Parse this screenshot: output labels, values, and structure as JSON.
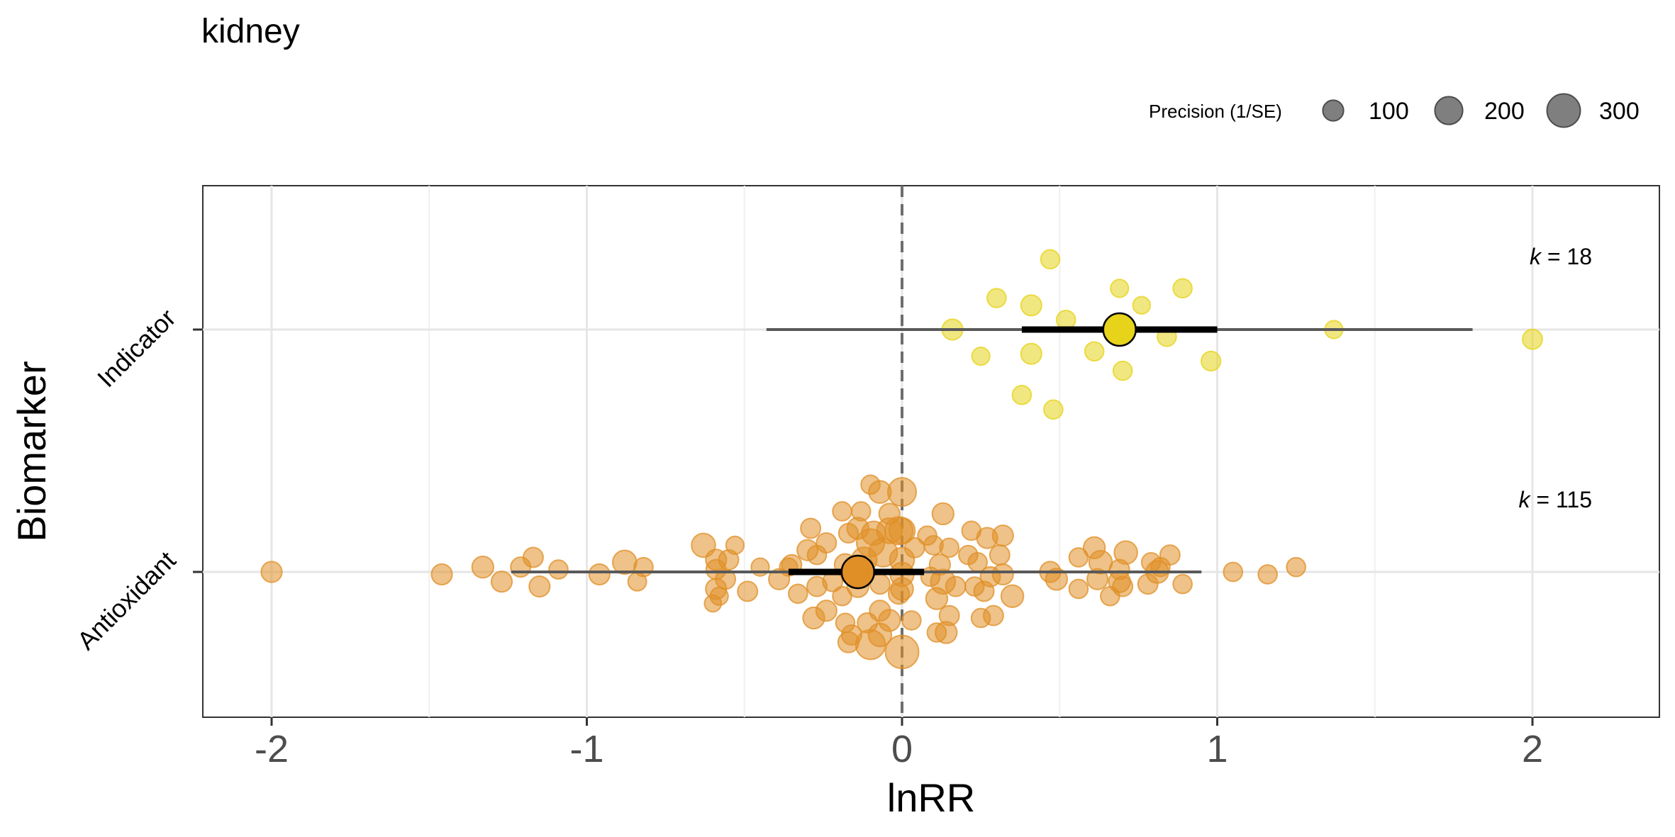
{
  "chart_data": {
    "type": "scatter",
    "title": "kidney",
    "xlabel": "lnRR",
    "ylabel": "Biomarker",
    "xlim": [
      -2.25,
      2.4
    ],
    "x_ticks": [
      -2,
      -1,
      0,
      1,
      2
    ],
    "x_tick_labels": [
      "-2",
      "-1",
      "0",
      "1",
      "2"
    ],
    "categories": [
      "Indicator",
      "Antioxidant"
    ],
    "grid": true,
    "reference_line": 0,
    "legend": {
      "title": "Precision (1/SE)",
      "position": "top-right",
      "entries": [
        {
          "label": "100",
          "value": 100
        },
        {
          "label": "200",
          "value": 200
        },
        {
          "label": "300",
          "value": 300
        }
      ]
    },
    "series": [
      {
        "category": "Indicator",
        "color": "#e6d31a",
        "k_label": "k",
        "k_text": " = 18",
        "estimate": 0.69,
        "ci": [
          0.38,
          1.0
        ],
        "pi": [
          -0.43,
          1.81
        ],
        "points": [
          {
            "x": 0.47,
            "jitter": 0.29,
            "precision": 80
          },
          {
            "x": 0.3,
            "jitter": 0.13,
            "precision": 80
          },
          {
            "x": 0.41,
            "jitter": 0.1,
            "precision": 100
          },
          {
            "x": 0.52,
            "jitter": 0.04,
            "precision": 80
          },
          {
            "x": 0.69,
            "jitter": 0.17,
            "precision": 70
          },
          {
            "x": 0.76,
            "jitter": 0.1,
            "precision": 65
          },
          {
            "x": 0.89,
            "jitter": 0.17,
            "precision": 80
          },
          {
            "x": 0.16,
            "jitter": 0.0,
            "precision": 100
          },
          {
            "x": 0.84,
            "jitter": -0.03,
            "precision": 80
          },
          {
            "x": 1.37,
            "jitter": 0.0,
            "precision": 70
          },
          {
            "x": 2.0,
            "jitter": -0.04,
            "precision": 90
          },
          {
            "x": 0.25,
            "jitter": -0.11,
            "precision": 70
          },
          {
            "x": 0.41,
            "jitter": -0.1,
            "precision": 100
          },
          {
            "x": 0.61,
            "jitter": -0.09,
            "precision": 80
          },
          {
            "x": 0.7,
            "jitter": -0.17,
            "precision": 80
          },
          {
            "x": 0.98,
            "jitter": -0.13,
            "precision": 85
          },
          {
            "x": 0.38,
            "jitter": -0.27,
            "precision": 80
          },
          {
            "x": 0.48,
            "jitter": -0.33,
            "precision": 80
          }
        ]
      },
      {
        "category": "Antioxidant",
        "color": "#e08f27",
        "k_label": "k",
        "k_text": " = 115",
        "estimate": -0.14,
        "ci": [
          -0.36,
          0.07
        ],
        "pi": [
          -1.24,
          0.95
        ],
        "points": [
          {
            "x": -2.0,
            "jitter": 0.0,
            "precision": 100
          },
          {
            "x": -1.46,
            "jitter": -0.01,
            "precision": 100
          },
          {
            "x": -1.33,
            "jitter": 0.02,
            "precision": 110
          },
          {
            "x": -1.27,
            "jitter": -0.04,
            "precision": 100
          },
          {
            "x": -1.21,
            "jitter": 0.02,
            "precision": 90
          },
          {
            "x": -1.17,
            "jitter": 0.06,
            "precision": 90
          },
          {
            "x": -1.15,
            "jitter": -0.06,
            "precision": 100
          },
          {
            "x": -1.09,
            "jitter": 0.01,
            "precision": 80
          },
          {
            "x": -0.96,
            "jitter": -0.01,
            "precision": 100
          },
          {
            "x": -0.88,
            "jitter": 0.04,
            "precision": 140
          },
          {
            "x": -0.82,
            "jitter": 0.02,
            "precision": 80
          },
          {
            "x": -0.84,
            "jitter": -0.04,
            "precision": 75
          },
          {
            "x": -0.63,
            "jitter": 0.11,
            "precision": 140
          },
          {
            "x": -0.59,
            "jitter": 0.05,
            "precision": 100
          },
          {
            "x": -0.55,
            "jitter": 0.05,
            "precision": 90
          },
          {
            "x": -0.53,
            "jitter": 0.11,
            "precision": 70
          },
          {
            "x": -0.59,
            "jitter": 0.01,
            "precision": 90
          },
          {
            "x": -0.56,
            "jitter": -0.03,
            "precision": 90
          },
          {
            "x": -0.59,
            "jitter": -0.07,
            "precision": 100
          },
          {
            "x": -0.58,
            "jitter": -0.1,
            "precision": 70
          },
          {
            "x": -0.6,
            "jitter": -0.13,
            "precision": 60
          },
          {
            "x": -0.49,
            "jitter": -0.08,
            "precision": 90
          },
          {
            "x": -0.45,
            "jitter": 0.02,
            "precision": 70
          },
          {
            "x": -0.39,
            "jitter": -0.03,
            "precision": 100
          },
          {
            "x": -0.3,
            "jitter": 0.09,
            "precision": 100
          },
          {
            "x": -0.35,
            "jitter": 0.03,
            "precision": 90
          },
          {
            "x": -0.27,
            "jitter": 0.07,
            "precision": 80
          },
          {
            "x": -0.24,
            "jitter": 0.12,
            "precision": 90
          },
          {
            "x": -0.29,
            "jitter": 0.18,
            "precision": 90
          },
          {
            "x": -0.19,
            "jitter": 0.25,
            "precision": 80
          },
          {
            "x": -0.17,
            "jitter": 0.16,
            "precision": 85
          },
          {
            "x": -0.13,
            "jitter": 0.25,
            "precision": 80
          },
          {
            "x": -0.1,
            "jitter": 0.36,
            "precision": 80
          },
          {
            "x": -0.07,
            "jitter": 0.33,
            "precision": 120
          },
          {
            "x": 0.0,
            "jitter": 0.33,
            "precision": 210
          },
          {
            "x": -0.04,
            "jitter": 0.24,
            "precision": 100
          },
          {
            "x": -0.14,
            "jitter": 0.18,
            "precision": 110
          },
          {
            "x": -0.09,
            "jitter": 0.16,
            "precision": 140
          },
          {
            "x": -0.04,
            "jitter": 0.17,
            "precision": 160
          },
          {
            "x": -0.01,
            "jitter": 0.17,
            "precision": 200
          },
          {
            "x": -0.1,
            "jitter": 0.12,
            "precision": 200
          },
          {
            "x": -0.06,
            "jitter": 0.08,
            "precision": 210
          },
          {
            "x": -0.12,
            "jitter": 0.05,
            "precision": 160
          },
          {
            "x": -0.18,
            "jitter": 0.03,
            "precision": 110
          },
          {
            "x": -0.22,
            "jitter": -0.04,
            "precision": 90
          },
          {
            "x": -0.19,
            "jitter": -0.1,
            "precision": 80
          },
          {
            "x": -0.14,
            "jitter": -0.06,
            "precision": 110
          },
          {
            "x": -0.27,
            "jitter": -0.06,
            "precision": 90
          },
          {
            "x": -0.33,
            "jitter": -0.09,
            "precision": 80
          },
          {
            "x": -0.28,
            "jitter": -0.19,
            "precision": 110
          },
          {
            "x": -0.24,
            "jitter": -0.16,
            "precision": 100
          },
          {
            "x": -0.18,
            "jitter": -0.21,
            "precision": 80
          },
          {
            "x": -0.16,
            "jitter": -0.26,
            "precision": 90
          },
          {
            "x": -0.11,
            "jitter": -0.21,
            "precision": 90
          },
          {
            "x": -0.07,
            "jitter": -0.16,
            "precision": 100
          },
          {
            "x": -0.04,
            "jitter": -0.2,
            "precision": 110
          },
          {
            "x": -0.01,
            "jitter": -0.09,
            "precision": 100
          },
          {
            "x": 0.03,
            "jitter": -0.2,
            "precision": 80
          },
          {
            "x": -0.17,
            "jitter": -0.29,
            "precision": 100
          },
          {
            "x": -0.1,
            "jitter": -0.3,
            "precision": 230
          },
          {
            "x": 0.0,
            "jitter": -0.33,
            "precision": 300
          },
          {
            "x": -0.07,
            "jitter": -0.26,
            "precision": 130
          },
          {
            "x": 0.0,
            "jitter": 0.17,
            "precision": 170
          },
          {
            "x": 0.0,
            "jitter": 0.05,
            "precision": 150
          },
          {
            "x": 0.0,
            "jitter": -0.01,
            "precision": 140
          },
          {
            "x": 0.0,
            "jitter": -0.07,
            "precision": 120
          },
          {
            "x": 0.04,
            "jitter": 0.1,
            "precision": 90
          },
          {
            "x": 0.08,
            "jitter": 0.15,
            "precision": 80
          },
          {
            "x": 0.1,
            "jitter": 0.11,
            "precision": 80
          },
          {
            "x": 0.12,
            "jitter": 0.03,
            "precision": 100
          },
          {
            "x": 0.13,
            "jitter": 0.24,
            "precision": 110
          },
          {
            "x": 0.15,
            "jitter": 0.1,
            "precision": 80
          },
          {
            "x": 0.09,
            "jitter": -0.02,
            "precision": 80
          },
          {
            "x": 0.13,
            "jitter": -0.04,
            "precision": 150
          },
          {
            "x": 0.11,
            "jitter": -0.11,
            "precision": 110
          },
          {
            "x": 0.17,
            "jitter": -0.06,
            "precision": 90
          },
          {
            "x": 0.15,
            "jitter": -0.18,
            "precision": 90
          },
          {
            "x": 0.11,
            "jitter": -0.25,
            "precision": 80
          },
          {
            "x": 0.14,
            "jitter": -0.25,
            "precision": 110
          },
          {
            "x": 0.22,
            "jitter": 0.17,
            "precision": 80
          },
          {
            "x": 0.27,
            "jitter": 0.14,
            "precision": 100
          },
          {
            "x": 0.21,
            "jitter": 0.07,
            "precision": 80
          },
          {
            "x": 0.24,
            "jitter": 0.04,
            "precision": 80
          },
          {
            "x": 0.31,
            "jitter": 0.07,
            "precision": 90
          },
          {
            "x": 0.32,
            "jitter": 0.15,
            "precision": 100
          },
          {
            "x": 0.28,
            "jitter": -0.02,
            "precision": 90
          },
          {
            "x": 0.23,
            "jitter": -0.06,
            "precision": 80
          },
          {
            "x": 0.26,
            "jitter": -0.08,
            "precision": 90
          },
          {
            "x": 0.32,
            "jitter": -0.01,
            "precision": 100
          },
          {
            "x": 0.35,
            "jitter": -0.1,
            "precision": 120
          },
          {
            "x": 0.29,
            "jitter": -0.18,
            "precision": 90
          },
          {
            "x": 0.25,
            "jitter": -0.19,
            "precision": 80
          },
          {
            "x": 0.47,
            "jitter": 0.0,
            "precision": 100
          },
          {
            "x": 0.49,
            "jitter": -0.03,
            "precision": 110
          },
          {
            "x": 0.56,
            "jitter": 0.06,
            "precision": 80
          },
          {
            "x": 0.56,
            "jitter": -0.07,
            "precision": 80
          },
          {
            "x": 0.61,
            "jitter": 0.1,
            "precision": 110
          },
          {
            "x": 0.63,
            "jitter": 0.04,
            "precision": 130
          },
          {
            "x": 0.62,
            "jitter": -0.03,
            "precision": 100
          },
          {
            "x": 0.69,
            "jitter": 0.01,
            "precision": 90
          },
          {
            "x": 0.71,
            "jitter": 0.08,
            "precision": 130
          },
          {
            "x": 0.69,
            "jitter": -0.04,
            "precision": 110
          },
          {
            "x": 0.66,
            "jitter": -0.1,
            "precision": 80
          },
          {
            "x": 0.7,
            "jitter": -0.06,
            "precision": 90
          },
          {
            "x": 0.79,
            "jitter": 0.04,
            "precision": 80
          },
          {
            "x": 0.81,
            "jitter": 0.0,
            "precision": 120
          },
          {
            "x": 0.78,
            "jitter": -0.05,
            "precision": 90
          },
          {
            "x": 0.82,
            "jitter": 0.02,
            "precision": 80
          },
          {
            "x": 0.85,
            "jitter": 0.07,
            "precision": 90
          },
          {
            "x": 0.89,
            "jitter": -0.05,
            "precision": 80
          },
          {
            "x": 1.05,
            "jitter": 0.0,
            "precision": 80
          },
          {
            "x": 1.16,
            "jitter": -0.01,
            "precision": 80
          },
          {
            "x": 1.25,
            "jitter": 0.02,
            "precision": 80
          },
          {
            "x": -0.07,
            "jitter": -0.05,
            "precision": 90
          },
          {
            "x": -0.36,
            "jitter": 0.02,
            "precision": 70
          }
        ]
      }
    ]
  }
}
